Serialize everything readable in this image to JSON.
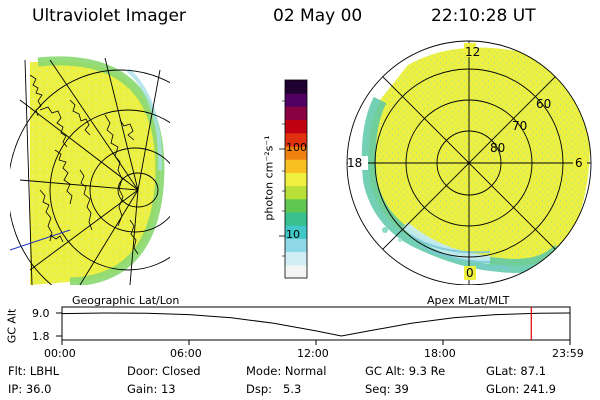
{
  "header": {
    "instrument": "Ultraviolet Imager",
    "date": "02 May 00",
    "time": "22:10:28 UT"
  },
  "colorbar": {
    "unit_label": "photon cm⁻²s⁻¹",
    "ticks": [
      "100",
      "10"
    ],
    "scale": "log",
    "colors": [
      "#f4f4f4",
      "#d0eef4",
      "#8fd8e8",
      "#40c8c8",
      "#38c090",
      "#60c850",
      "#b8e038",
      "#f0f040",
      "#f8c020",
      "#f08010",
      "#e03010",
      "#c00010",
      "#8a0040",
      "#500060",
      "#200030"
    ]
  },
  "left_panel": {
    "label": "Geographic Lat/Lon",
    "fill_color": "#eef040",
    "edge_color": "#8ad870"
  },
  "right_panel": {
    "label": "Apex MLat/MLT",
    "mlt_labels": {
      "top": "12",
      "left": "18",
      "right": "6",
      "bottom": "0"
    },
    "lat_labels": [
      "60",
      "70",
      "80"
    ],
    "fill_color": "#eef040",
    "edge_color": "#5cc8a8"
  },
  "timeline": {
    "ylabel": "GC Alt",
    "yticks": [
      "9.0",
      "1.8"
    ],
    "xticks": [
      "00:00",
      "06:00",
      "12:00",
      "18:00",
      "23:59"
    ],
    "current_marker_hours": 22.17,
    "marker_color": "#e00000",
    "altitude_curve": [
      {
        "t": 0,
        "alt": 8.8
      },
      {
        "t": 2,
        "alt": 9.0
      },
      {
        "t": 4,
        "alt": 8.9
      },
      {
        "t": 6,
        "alt": 8.5
      },
      {
        "t": 8,
        "alt": 7.5
      },
      {
        "t": 10,
        "alt": 5.8
      },
      {
        "t": 12,
        "alt": 3.4
      },
      {
        "t": 13.2,
        "alt": 1.8
      },
      {
        "t": 14.5,
        "alt": 3.4
      },
      {
        "t": 16.5,
        "alt": 5.8
      },
      {
        "t": 18.5,
        "alt": 7.5
      },
      {
        "t": 20.5,
        "alt": 8.5
      },
      {
        "t": 22.5,
        "alt": 8.9
      },
      {
        "t": 23.98,
        "alt": 9.0
      }
    ]
  },
  "info": {
    "row1": [
      {
        "key": "Flt:",
        "value": "LBHL"
      },
      {
        "key": "Door:",
        "value": "Closed"
      },
      {
        "key": "Mode:",
        "value": "Normal"
      },
      {
        "key": "GC Alt:",
        "value": "9.3 Re"
      },
      {
        "key": "GLat:",
        "value": "87.1"
      }
    ],
    "row2": [
      {
        "key": "IP:",
        "value": "36.0"
      },
      {
        "key": "Gain:",
        "value": "13"
      },
      {
        "key": "Dsp:",
        "value": "5.3"
      },
      {
        "key": "Seq:",
        "value": "39"
      },
      {
        "key": "GLon:",
        "value": "241.9"
      }
    ]
  }
}
